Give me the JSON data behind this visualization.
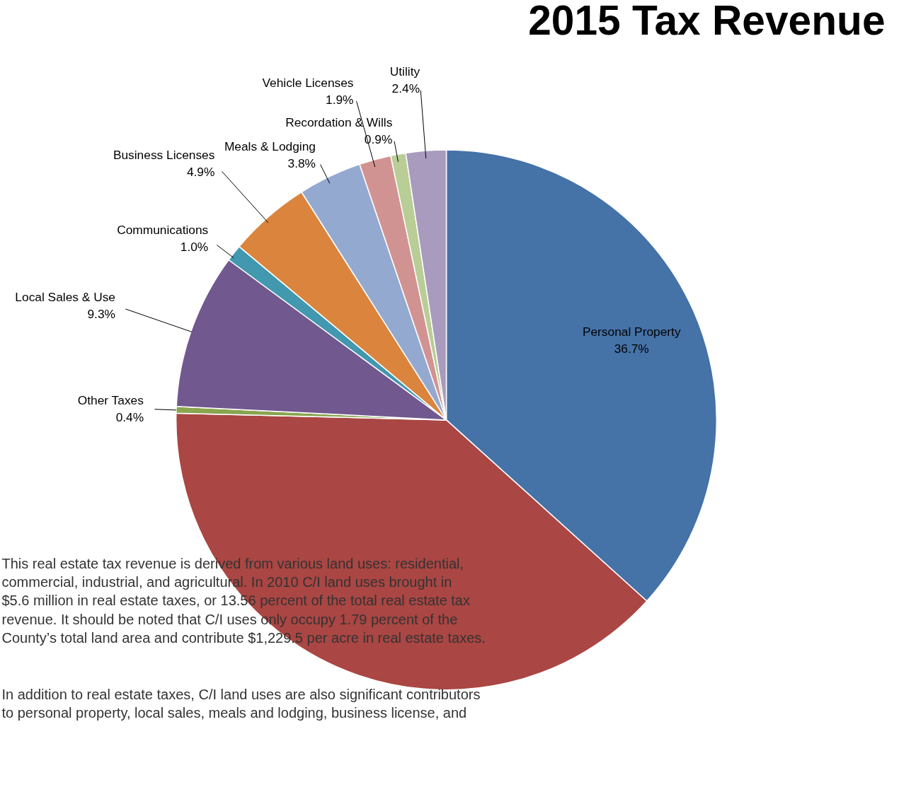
{
  "chart_data": {
    "type": "pie",
    "title": "2015 Tax Revenue",
    "categories": [
      "Personal Property",
      null,
      "Other Taxes",
      "Local Sales & Use",
      "Communications",
      "Business Licenses",
      "Meals & Lodging",
      "Vehicle Licenses",
      "Recordation & Wills",
      "Utility"
    ],
    "values": [
      36.7,
      38.7,
      0.4,
      9.3,
      1.0,
      4.9,
      3.8,
      1.9,
      0.9,
      2.4
    ],
    "value_labels": [
      "36.7%",
      null,
      "0.4%",
      "9.3%",
      "1.0%",
      "4.9%",
      "3.8%",
      "1.9%",
      "0.9%",
      "2.4%"
    ],
    "colors": [
      "#4572a7",
      "#aa4643",
      "#89a54e",
      "#71588f",
      "#4198af",
      "#db843d",
      "#93a9cf",
      "#d19392",
      "#b9cd96",
      "#a99bbd"
    ],
    "annotations": [
      "This real estate tax revenue is derived from various land uses: residential,\ncommercial, industrial, and agricultural.  In 2010 C/I land uses brought in\n$5.6 million in real estate taxes, or 13.56 percent of the total real estate tax\nrevenue.  It should be noted that C/I uses only occupy 1.79 percent of the\nCounty’s total land area and contribute $1,229.5 per acre in real estate taxes.",
      "In addition to real estate taxes, C/I land uses are also significant contributors\nto personal property, local sales, meals and lodging, business license, and"
    ]
  }
}
